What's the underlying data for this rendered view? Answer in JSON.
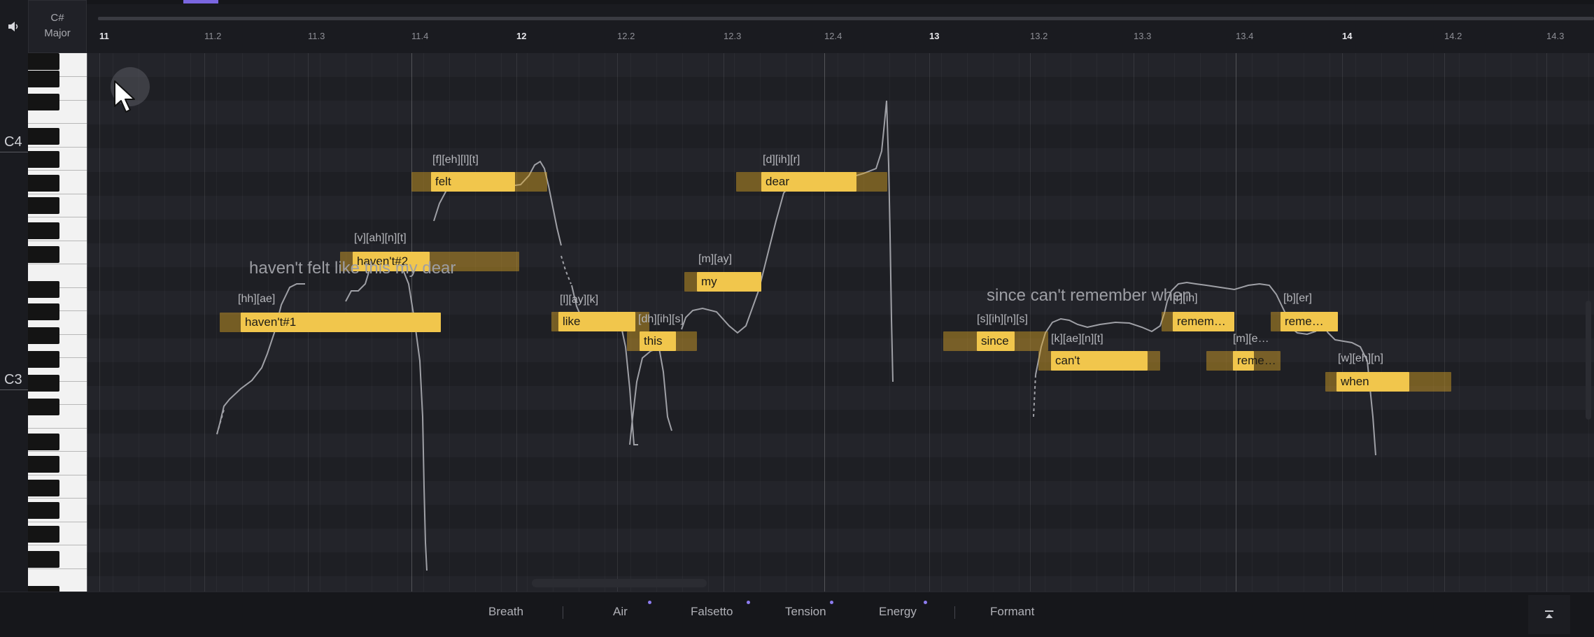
{
  "key": {
    "note": "C#",
    "mode": "Major"
  },
  "octaves": [
    {
      "label": "C4"
    },
    {
      "label": "C3"
    }
  ],
  "ruler": {
    "ticks": [
      "11",
      "11.2",
      "11.3",
      "11.4",
      "12",
      "12.2",
      "12.3",
      "12.4",
      "13",
      "13.2",
      "13.3",
      "13.4",
      "14",
      "14.2",
      "14.3"
    ]
  },
  "notes": [
    {
      "text": "haven't#1",
      "phonemes": "[hh][ae]"
    },
    {
      "text": "haven't#2",
      "phonemes": "[v][ah][n][t]"
    },
    {
      "text": "felt",
      "phonemes": "[f][eh][l][t]"
    },
    {
      "text": "like",
      "phonemes": "[l][ay][k]"
    },
    {
      "text": "this",
      "phonemes": "[dh][ih][s]"
    },
    {
      "text": "my",
      "phonemes": "[m][ay]"
    },
    {
      "text": "dear",
      "phonemes": "[d][ih][r]"
    },
    {
      "text": "since",
      "phonemes": "[s][ih][n][s]"
    },
    {
      "text": "can't",
      "phonemes": "[k][ae][n][t]"
    },
    {
      "text": "remem…",
      "phonemes": "[r][ih]"
    },
    {
      "text": "reme…",
      "phonemes": "[m][e…"
    },
    {
      "text": "reme…",
      "phonemes": "[b][er]"
    },
    {
      "text": "when",
      "phonemes": "[w][eh][n]"
    }
  ],
  "lyrics": [
    {
      "text": "haven't felt like this my dear"
    },
    {
      "text": "since can't remember when"
    }
  ],
  "params": {
    "tabs": [
      {
        "label": "Breath",
        "dot": false
      },
      {
        "label": "Air",
        "dot": true
      },
      {
        "label": "Falsetto",
        "dot": true
      },
      {
        "label": "Tension",
        "dot": true
      },
      {
        "label": "Energy",
        "dot": true
      },
      {
        "label": "Formant",
        "dot": false
      }
    ]
  },
  "colors": {
    "note_fill": "#f1c64c",
    "accent": "#8d7cf0",
    "background": "#1d1e23"
  },
  "icons": {
    "speaker": "speaker-icon",
    "collapse": "collapse-panel-icon",
    "cursor": "mouse-pointer-icon"
  }
}
